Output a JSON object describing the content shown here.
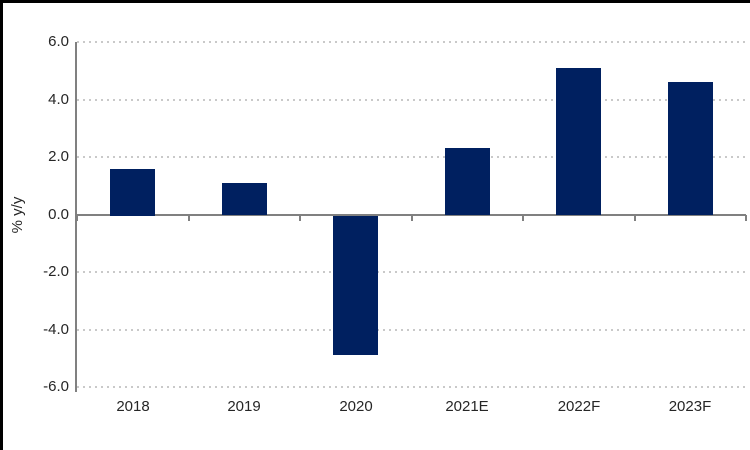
{
  "chart_data": {
    "type": "bar",
    "categories": [
      "2018",
      "2019",
      "2020",
      "2021E",
      "2022F",
      "2023F"
    ],
    "values": [
      1.6,
      1.1,
      -4.9,
      2.3,
      5.1,
      4.6
    ],
    "title": "",
    "xlabel": "",
    "ylabel": "% y/y",
    "ylim": [
      -6.0,
      6.0
    ],
    "ytick_step": 2.0,
    "ytick_labels": [
      "6.0",
      "4.0",
      "2.0",
      "0.0",
      "-2.0",
      "-4.0",
      "-6.0"
    ],
    "gridline_values": [
      6.0,
      4.0,
      2.0,
      -2.0,
      -4.0,
      -6.0
    ],
    "grid": "horizontal-dotted",
    "legend": "none",
    "colors": {
      "bar": "#002060",
      "axis": "#808080",
      "gridline": "#c9c9c9",
      "text": "#262626",
      "frame_border": "#000000",
      "background": "#ffffff"
    }
  }
}
